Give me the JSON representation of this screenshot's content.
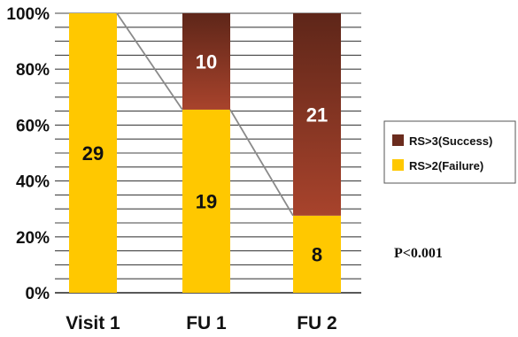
{
  "chart_data": {
    "type": "bar",
    "stacked": true,
    "percent_stacked": true,
    "categories": [
      "Visit 1",
      "FU 1",
      "FU 2"
    ],
    "series": [
      {
        "name": "RS>2(Failure)",
        "values": [
          29,
          19,
          8
        ],
        "color": "#FFC800"
      },
      {
        "name": "RS>3(Success)",
        "values": [
          0,
          10,
          21
        ],
        "color": "#8B3A2A"
      }
    ],
    "ylim": [
      0,
      100
    ],
    "yticks": [
      "0%",
      "20%",
      "40%",
      "60%",
      "80%",
      "100%"
    ],
    "grid": true,
    "legend_position": "right",
    "annotation": "P<0.001",
    "connector_lines": true
  }
}
